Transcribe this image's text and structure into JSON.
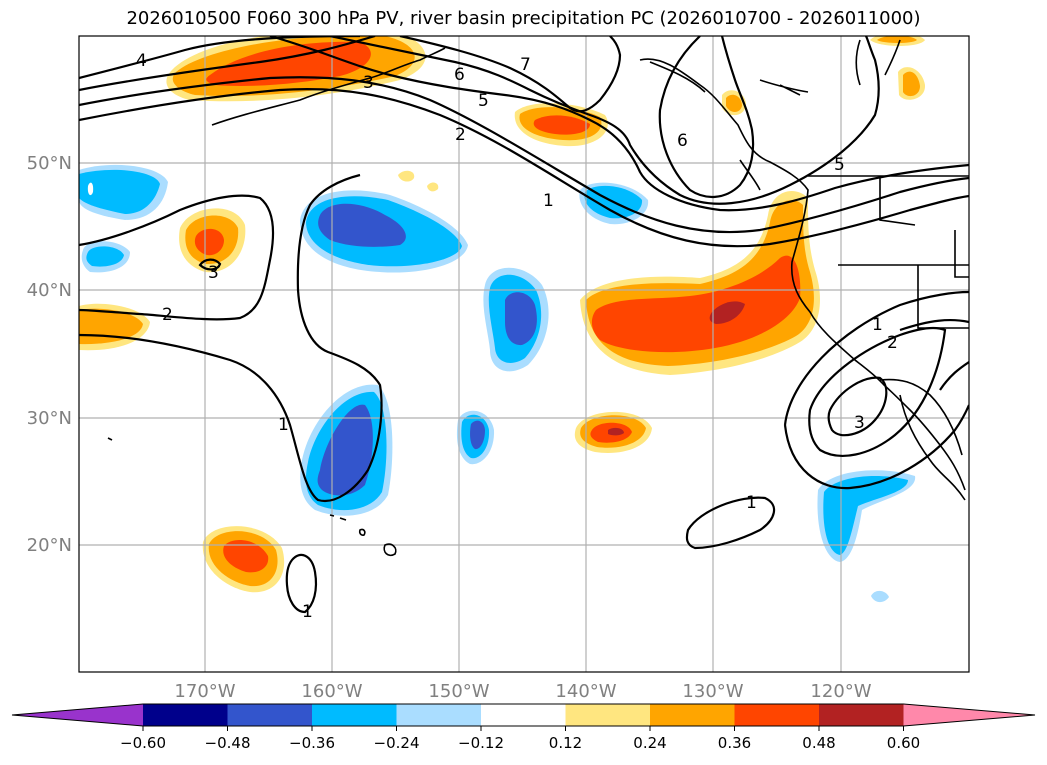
{
  "title": "2026010500 F060 300 hPa PV, river basin precipitation PC (2026010700 - 2026011000)",
  "lat_labels": [
    "50°N",
    "40°N",
    "30°N",
    "20°N"
  ],
  "lon_labels": [
    "170°W",
    "160°W",
    "150°W",
    "140°W",
    "130°W",
    "120°W"
  ],
  "colorbar": {
    "colors": [
      "#9933cc",
      "#00008b",
      "#3355cc",
      "#00bbff",
      "#aaddff",
      "#ffffff",
      "#ffe680",
      "#ffa500",
      "#ff4500",
      "#b22222",
      "#ff88aa"
    ],
    "tick_labels": [
      "−0.60",
      "−0.48",
      "−0.36",
      "−0.24",
      "−0.12",
      "0.12",
      "0.24",
      "0.36",
      "0.48",
      "0.60"
    ]
  },
  "contour_labels": [
    "4",
    "3",
    "7",
    "6",
    "5",
    "2",
    "1",
    "6",
    "5",
    "3",
    "2",
    "1",
    "1",
    "2",
    "3",
    "1",
    "1"
  ]
}
